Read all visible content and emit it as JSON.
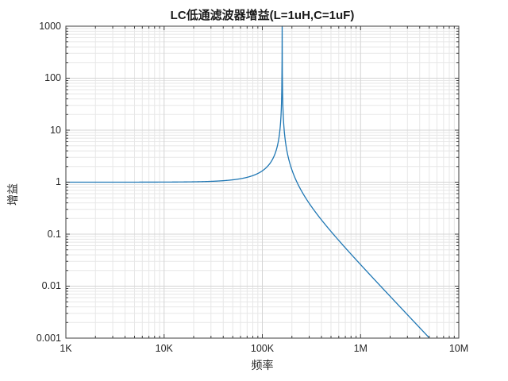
{
  "chart_data": {
    "type": "line",
    "title": "LC低通滤波器增益(L=1uH,C=1uF)",
    "xlabel": "频率",
    "ylabel": "增益",
    "x_scale": "log",
    "y_scale": "log",
    "xlim": [
      1000,
      10000000
    ],
    "ylim": [
      0.001,
      1000
    ],
    "x_ticks": {
      "values": [
        1000,
        10000,
        100000,
        1000000,
        10000000
      ],
      "labels": [
        "1K",
        "10K",
        "100K",
        "1M",
        "10M"
      ]
    },
    "y_ticks": {
      "values": [
        1000,
        100,
        10,
        1,
        0.1,
        0.01,
        0.001
      ],
      "labels": [
        "1000",
        "100",
        "10",
        "1",
        "0.1",
        "0.01",
        "0.001"
      ]
    },
    "grid": {
      "major": true,
      "minor": true
    },
    "legend": "none",
    "colors": {
      "line": "#1f77b4",
      "axis": "#3c3c3c",
      "grid_major": "#d4d4d4",
      "grid_minor": "#e7e7e7",
      "text": "#262626",
      "background": "#ffffff"
    },
    "series": [
      {
        "name": "LC低通滤波器增益",
        "formula": "gain(f) = 1 / |1 - (2*pi*f)^2 * L * C|",
        "params": {
          "L_henry": 1e-06,
          "C_farad": 1e-06,
          "f_min_hz": 1000,
          "f_max_hz": 5000000,
          "resonance_hz": 159154.94
        },
        "points": [
          [
            1000,
            1.00004
          ],
          [
            2000,
            1.00016
          ],
          [
            5000,
            1.00099
          ],
          [
            10000,
            1.00396
          ],
          [
            20000,
            1.01604
          ],
          [
            50000,
            1.1096
          ],
          [
            100000,
            1.6523
          ],
          [
            130000,
            3.0046
          ],
          [
            150000,
            8.949
          ],
          [
            155000,
            19.41
          ],
          [
            158000,
            69.18
          ],
          [
            159000,
            515.1
          ],
          [
            159155,
            1000
          ],
          [
            160000,
            94.0
          ],
          [
            162000,
            27.71
          ],
          [
            165000,
            13.37
          ],
          [
            170000,
            7.1
          ],
          [
            180000,
            3.583
          ],
          [
            200000,
            1.7267
          ],
          [
            250000,
            0.6815
          ],
          [
            300000,
            0.3917
          ],
          [
            400000,
            0.1881
          ],
          [
            500000,
            0.1127
          ],
          [
            700000,
            0.0545
          ],
          [
            1000000,
            0.026
          ],
          [
            2000000,
            0.00637
          ],
          [
            3000000,
            0.00282
          ],
          [
            5000000,
            0.00101
          ]
        ]
      }
    ]
  }
}
